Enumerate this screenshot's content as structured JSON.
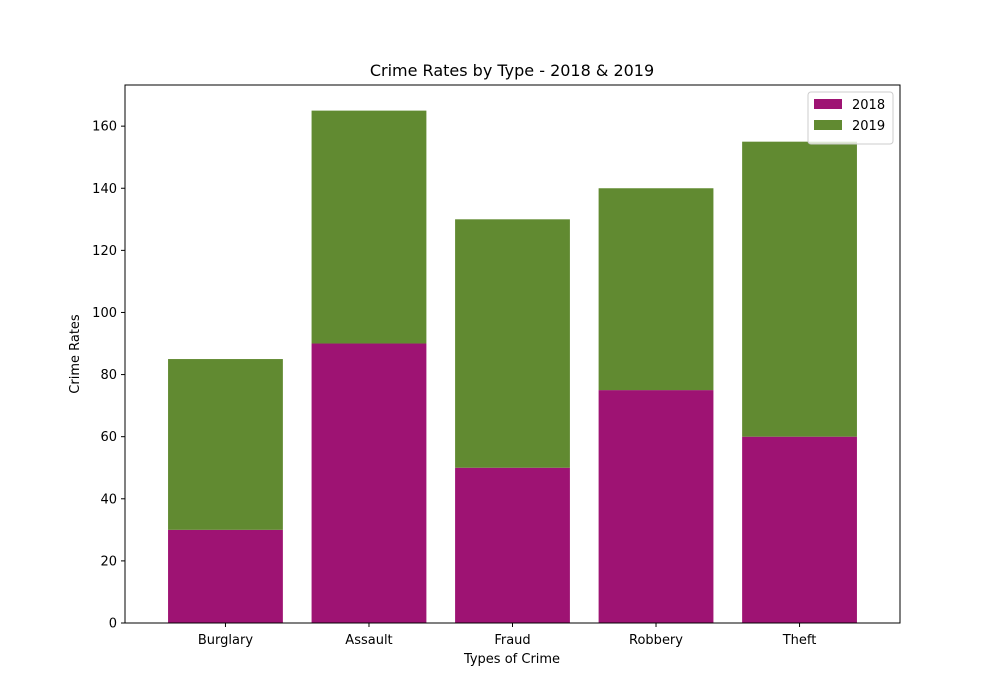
{
  "chart_data": {
    "type": "bar",
    "stacked": true,
    "title": "Crime Rates by Type - 2018 & 2019",
    "xlabel": "Types of Crime",
    "ylabel": "Crime Rates",
    "categories": [
      "Burglary",
      "Assault",
      "Fraud",
      "Robbery",
      "Theft"
    ],
    "series": [
      {
        "name": "2018",
        "values": [
          30,
          90,
          50,
          75,
          60
        ],
        "color": "#9e1373"
      },
      {
        "name": "2019",
        "values": [
          55,
          75,
          80,
          65,
          95
        ],
        "color": "#618a31"
      }
    ],
    "ylim": [
      0,
      173.25
    ],
    "yticks": [
      0,
      20,
      40,
      60,
      80,
      100,
      120,
      140,
      160
    ],
    "grid": false,
    "legend_position": "top-right"
  }
}
